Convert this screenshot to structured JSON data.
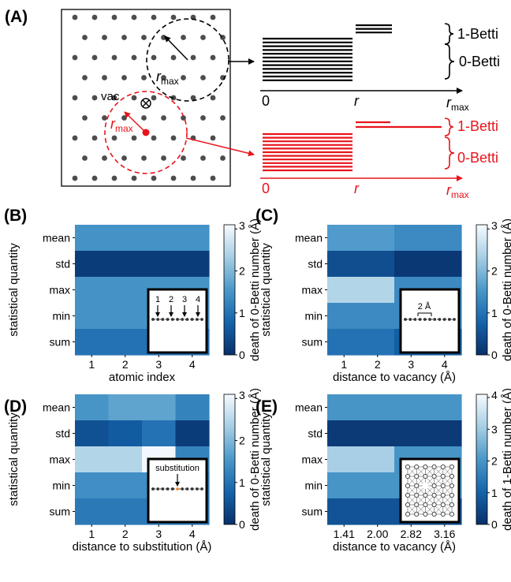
{
  "panel_A": {
    "label": "(A)",
    "vacancy_label": "vac",
    "rmax_label": "r",
    "rmax_sub": "max",
    "bar_axis": {
      "zero": "0",
      "r": "r",
      "rmax": "r",
      "rmax_sub": "max"
    },
    "betti1": "1-Betti",
    "betti0": "0-Betti",
    "colors": {
      "black": "#000000",
      "red": "#e8141b"
    }
  },
  "chart_data": [
    {
      "panel": "(B)",
      "type": "heatmap",
      "xlabel": "atomic index",
      "ylabel": "statistical quantity",
      "x": [
        "1",
        "2",
        "3",
        "4"
      ],
      "y": [
        "mean",
        "std",
        "max",
        "min",
        "sum"
      ],
      "values": [
        [
          1.48,
          1.48,
          1.48,
          1.48
        ],
        [
          0.18,
          0.18,
          0.18,
          0.18
        ],
        [
          1.48,
          1.48,
          1.48,
          1.48
        ],
        [
          1.48,
          1.48,
          1.48,
          1.48
        ],
        [
          1.0,
          1.0,
          1.0,
          1.0
        ]
      ],
      "colorbar": {
        "label": "death of 0-Betti number (Å)",
        "ticks": [
          "0",
          "1",
          "2",
          "3"
        ],
        "max_label": "3",
        "range": [
          0,
          3.1
        ]
      },
      "inset": {
        "numbers": [
          "1",
          "2",
          "3",
          "4"
        ]
      }
    },
    {
      "panel": "(C)",
      "type": "heatmap",
      "xlabel": "distance to vacancy (Å)",
      "ylabel": "statistical quantity",
      "x": [
        "1",
        "2",
        "3",
        "4"
      ],
      "y": [
        "mean",
        "std",
        "max",
        "min",
        "sum"
      ],
      "values": [
        [
          1.6,
          1.6,
          1.35,
          1.35
        ],
        [
          0.45,
          0.45,
          0.12,
          0.12
        ],
        [
          2.45,
          2.45,
          1.35,
          1.35
        ],
        [
          1.35,
          1.35,
          1.35,
          1.35
        ],
        [
          1.0,
          1.0,
          0.7,
          0.7
        ]
      ],
      "colorbar": {
        "label": "death of 0-Betti number (Å)",
        "ticks": [
          "0",
          "1",
          "2",
          "3"
        ],
        "max_label": "3",
        "range": [
          0,
          3.1
        ]
      },
      "inset": {
        "text": "2 Å"
      }
    },
    {
      "panel": "(D)",
      "type": "heatmap",
      "xlabel": "distance to substitution (Å)",
      "ylabel": "statistical quantity",
      "x": [
        "1",
        "2",
        "3",
        "4"
      ],
      "y": [
        "mean",
        "std",
        "max",
        "min",
        "sum"
      ],
      "values": [
        [
          1.5,
          1.72,
          1.72,
          1.25
        ],
        [
          0.5,
          0.65,
          1.0,
          0.18
        ],
        [
          2.45,
          2.45,
          3.05,
          1.25
        ],
        [
          1.4,
          1.4,
          1.4,
          1.1
        ],
        [
          1.1,
          1.1,
          1.1,
          1.1
        ]
      ],
      "colorbar": {
        "label": "death of 0-Betti number (Å)",
        "ticks": [
          "0",
          "1",
          "2",
          "3"
        ],
        "max_label": "3",
        "range": [
          0,
          3.1
        ]
      },
      "inset": {
        "text": "substitution"
      }
    },
    {
      "panel": "(E)",
      "type": "heatmap",
      "xlabel": "distance to vacancy (Å)",
      "ylabel": "statistical quantity",
      "x": [
        "1.41",
        "2.00",
        "2.82",
        "3.16"
      ],
      "y": [
        "mean",
        "std",
        "max",
        "min",
        "sum"
      ],
      "values": [
        [
          2.0,
          2.0,
          2.0,
          2.0
        ],
        [
          0.2,
          0.2,
          0.2,
          0.2
        ],
        [
          3.1,
          3.1,
          2.0,
          2.0
        ],
        [
          2.0,
          2.0,
          2.0,
          2.0
        ],
        [
          0.7,
          0.7,
          0.7,
          0.7
        ]
      ],
      "colorbar": {
        "label": "death of 1-Betti number (Å)",
        "ticks": [
          "0",
          "1",
          "2",
          "3",
          "4"
        ],
        "max_label": "4",
        "range": [
          0,
          4.1
        ]
      }
    }
  ]
}
